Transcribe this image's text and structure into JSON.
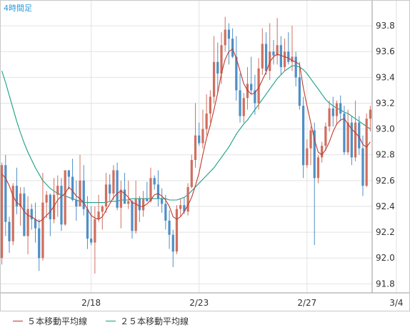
{
  "timeframe_label": "4時間足",
  "chart_data": {
    "type": "candlestick",
    "title": "",
    "x_tick_labels": [
      {
        "label": "2/18",
        "index": 24
      },
      {
        "label": "2/23",
        "index": 53
      },
      {
        "label": "2/27",
        "index": 82
      },
      {
        "label": "3/4",
        "index": 106
      }
    ],
    "y_ticks": [
      91.8,
      92.0,
      92.2,
      92.4,
      92.6,
      92.8,
      93.0,
      93.2,
      93.4,
      93.6,
      93.8
    ],
    "y_tick_labels": [
      "91.8",
      "92.0",
      "92.2",
      "92.4",
      "92.6",
      "92.8",
      "93.0",
      "93.2",
      "93.4",
      "93.6",
      "93.8"
    ],
    "ylim": [
      91.73,
      94.0
    ],
    "legend": [
      {
        "label": "５本移動平均線",
        "color": "#c0392b"
      },
      {
        "label": "２５本移動平均線",
        "color": "#16a085"
      }
    ],
    "colors": {
      "up": "#cf6f5f",
      "down": "#4f8fc6",
      "ma5": "#c0392b",
      "ma25": "#16a085",
      "grid": "#e2e2e2"
    },
    "ohlc": [
      [
        92.0,
        92.74,
        91.95,
        92.72
      ],
      [
        92.72,
        92.8,
        92.17,
        92.28
      ],
      [
        92.28,
        92.32,
        92.04,
        92.13
      ],
      [
        92.13,
        92.58,
        92.1,
        92.56
      ],
      [
        92.56,
        92.7,
        92.34,
        92.4
      ],
      [
        92.4,
        92.55,
        92.25,
        92.5
      ],
      [
        92.5,
        92.55,
        92.17,
        92.17
      ],
      [
        92.17,
        92.48,
        92.03,
        92.38
      ],
      [
        92.38,
        92.42,
        92.22,
        92.3
      ],
      [
        92.3,
        92.43,
        92.12,
        92.23
      ],
      [
        92.23,
        92.3,
        91.9,
        92.0
      ],
      [
        92.0,
        92.66,
        91.98,
        92.43
      ],
      [
        92.43,
        92.52,
        92.31,
        92.49
      ],
      [
        92.49,
        92.5,
        92.17,
        92.3
      ],
      [
        92.3,
        92.62,
        92.27,
        92.49
      ],
      [
        92.49,
        92.64,
        92.32,
        92.56
      ],
      [
        92.56,
        92.62,
        92.21,
        92.26
      ],
      [
        92.26,
        92.68,
        92.25,
        92.68
      ],
      [
        92.68,
        92.68,
        92.53,
        92.63
      ],
      [
        92.63,
        92.77,
        92.44,
        92.45
      ],
      [
        92.45,
        92.6,
        92.29,
        92.4
      ],
      [
        92.4,
        92.8,
        92.4,
        92.6
      ],
      [
        92.6,
        92.72,
        92.33,
        92.38
      ],
      [
        92.38,
        92.48,
        92.07,
        92.15
      ],
      [
        92.15,
        92.4,
        92.1,
        92.12
      ],
      [
        92.12,
        92.4,
        91.88,
        92.3
      ],
      [
        92.3,
        92.49,
        92.28,
        92.36
      ],
      [
        92.36,
        92.41,
        92.22,
        92.4
      ],
      [
        92.4,
        92.66,
        92.35,
        92.57
      ],
      [
        92.57,
        92.65,
        92.44,
        92.5
      ],
      [
        92.5,
        92.72,
        92.45,
        92.68
      ],
      [
        92.68,
        92.74,
        92.37,
        92.39
      ],
      [
        92.39,
        92.6,
        92.23,
        92.53
      ],
      [
        92.53,
        92.66,
        92.42,
        92.42
      ],
      [
        92.42,
        92.6,
        92.38,
        92.44
      ],
      [
        92.44,
        92.45,
        92.15,
        92.21
      ],
      [
        92.21,
        92.6,
        92.19,
        92.46
      ],
      [
        92.46,
        92.48,
        92.28,
        92.37
      ],
      [
        92.37,
        92.52,
        92.32,
        92.46
      ],
      [
        92.46,
        92.59,
        92.44,
        92.44
      ],
      [
        92.44,
        92.7,
        92.43,
        92.62
      ],
      [
        92.62,
        92.64,
        92.53,
        92.57
      ],
      [
        92.57,
        92.68,
        92.4,
        92.46
      ],
      [
        92.46,
        92.54,
        92.35,
        92.42
      ],
      [
        92.42,
        92.49,
        92.22,
        92.29
      ],
      [
        92.29,
        92.37,
        92.07,
        92.18
      ],
      [
        92.18,
        92.22,
        91.93,
        92.05
      ],
      [
        92.05,
        92.41,
        92.03,
        92.38
      ],
      [
        92.38,
        92.46,
        92.32,
        92.41
      ],
      [
        92.41,
        92.47,
        92.34,
        92.36
      ],
      [
        92.36,
        92.58,
        92.33,
        92.55
      ],
      [
        92.55,
        92.8,
        92.54,
        92.76
      ],
      [
        92.76,
        93.2,
        92.7,
        92.95
      ],
      [
        92.95,
        93.05,
        92.87,
        92.89
      ],
      [
        92.89,
        93.15,
        92.85,
        93.0
      ],
      [
        93.0,
        93.27,
        92.95,
        93.12
      ],
      [
        93.12,
        93.3,
        93.05,
        93.25
      ],
      [
        93.25,
        93.72,
        93.2,
        93.52
      ],
      [
        93.52,
        93.67,
        93.28,
        93.43
      ],
      [
        93.43,
        93.75,
        93.35,
        93.65
      ],
      [
        93.65,
        93.87,
        93.6,
        93.77
      ],
      [
        93.77,
        93.82,
        93.5,
        93.7
      ],
      [
        93.7,
        93.78,
        93.55,
        93.56
      ],
      [
        93.56,
        93.72,
        93.22,
        93.3
      ],
      [
        93.3,
        93.43,
        93.05,
        93.1
      ],
      [
        93.1,
        93.28,
        93.05,
        93.24
      ],
      [
        93.24,
        93.48,
        93.15,
        93.35
      ],
      [
        93.35,
        93.56,
        93.27,
        93.3
      ],
      [
        93.3,
        93.42,
        93.11,
        93.2
      ],
      [
        93.2,
        93.55,
        93.15,
        93.47
      ],
      [
        93.47,
        93.78,
        93.42,
        93.66
      ],
      [
        93.66,
        93.75,
        93.42,
        93.45
      ],
      [
        93.45,
        93.82,
        93.38,
        93.6
      ],
      [
        93.6,
        93.69,
        93.5,
        93.57
      ],
      [
        93.57,
        93.86,
        93.5,
        93.65
      ],
      [
        93.65,
        93.72,
        93.42,
        93.48
      ],
      [
        93.48,
        93.7,
        93.45,
        93.6
      ],
      [
        93.6,
        93.75,
        93.5,
        93.52
      ],
      [
        93.52,
        93.8,
        93.45,
        93.56
      ],
      [
        93.56,
        93.6,
        93.33,
        93.4
      ],
      [
        93.4,
        93.52,
        93.15,
        93.18
      ],
      [
        93.18,
        93.25,
        92.62,
        92.72
      ],
      [
        92.72,
        92.92,
        92.7,
        92.85
      ],
      [
        92.85,
        93.02,
        92.72,
        92.99
      ],
      [
        92.99,
        93.05,
        92.1,
        92.62
      ],
      [
        92.62,
        92.8,
        92.58,
        92.78
      ],
      [
        92.78,
        92.9,
        92.74,
        92.87
      ],
      [
        92.87,
        93.05,
        92.83,
        93.02
      ],
      [
        93.02,
        93.22,
        92.98,
        93.16
      ],
      [
        93.16,
        93.25,
        93.02,
        93.1
      ],
      [
        93.1,
        93.22,
        93.03,
        93.2
      ],
      [
        93.2,
        93.26,
        93.06,
        93.12
      ],
      [
        93.12,
        93.18,
        92.8,
        92.82
      ],
      [
        92.82,
        93.15,
        92.8,
        93.05
      ],
      [
        93.05,
        93.1,
        92.72,
        92.78
      ],
      [
        92.78,
        93.22,
        92.75,
        93.05
      ],
      [
        93.05,
        93.1,
        92.8,
        92.85
      ],
      [
        92.85,
        92.95,
        92.48,
        92.56
      ],
      [
        92.56,
        93.12,
        92.55,
        93.08
      ],
      [
        93.08,
        93.18,
        92.98,
        93.15
      ]
    ],
    "ma5": [
      92.65,
      92.62,
      92.56,
      92.48,
      92.43,
      92.41,
      92.36,
      92.33,
      92.32,
      92.3,
      92.28,
      92.3,
      92.33,
      92.36,
      92.4,
      92.45,
      92.48,
      92.5,
      92.55,
      92.52,
      92.48,
      92.46,
      92.43,
      92.38,
      92.33,
      92.31,
      92.3,
      92.32,
      92.37,
      92.42,
      92.47,
      92.5,
      92.52,
      92.5,
      92.47,
      92.43,
      92.42,
      92.4,
      92.4,
      92.42,
      92.45,
      92.49,
      92.5,
      92.48,
      92.45,
      92.4,
      92.32,
      92.3,
      92.32,
      92.36,
      92.41,
      92.47,
      92.56,
      92.66,
      92.8,
      92.93,
      93.03,
      93.15,
      93.28,
      93.43,
      93.54,
      93.6,
      93.62,
      93.55,
      93.45,
      93.35,
      93.3,
      93.27,
      93.28,
      93.32,
      93.38,
      93.44,
      93.52,
      93.56,
      93.58,
      93.57,
      93.56,
      93.55,
      93.53,
      93.52,
      93.5,
      93.32,
      93.18,
      93.05,
      92.92,
      92.82,
      92.8,
      92.84,
      92.9,
      92.98,
      93.04,
      93.07,
      93.08,
      93.04,
      93.0,
      92.97,
      92.94,
      92.88,
      92.86,
      92.9
    ],
    "ma25": [
      93.45,
      93.36,
      93.26,
      93.16,
      93.06,
      92.97,
      92.89,
      92.82,
      92.76,
      92.7,
      92.65,
      92.6,
      92.57,
      92.54,
      92.52,
      92.5,
      92.49,
      92.48,
      92.47,
      92.46,
      92.45,
      92.44,
      92.43,
      92.43,
      92.43,
      92.43,
      92.43,
      92.43,
      92.43,
      92.44,
      92.44,
      92.44,
      92.45,
      92.45,
      92.45,
      92.46,
      92.46,
      92.46,
      92.46,
      92.46,
      92.46,
      92.46,
      92.46,
      92.46,
      92.46,
      92.45,
      92.45,
      92.45,
      92.46,
      92.47,
      92.49,
      92.52,
      92.55,
      92.58,
      92.61,
      92.64,
      92.67,
      92.7,
      92.74,
      92.78,
      92.82,
      92.86,
      92.91,
      92.96,
      93.0,
      93.04,
      93.07,
      93.11,
      93.15,
      93.19,
      93.23,
      93.27,
      93.31,
      93.35,
      93.39,
      93.42,
      93.45,
      93.47,
      93.49,
      93.49,
      93.48,
      93.46,
      93.43,
      93.39,
      93.35,
      93.31,
      93.27,
      93.23,
      93.2,
      93.18,
      93.16,
      93.15,
      93.13,
      93.12,
      93.1,
      93.08,
      93.06,
      93.04,
      93.02,
      93.0
    ]
  }
}
